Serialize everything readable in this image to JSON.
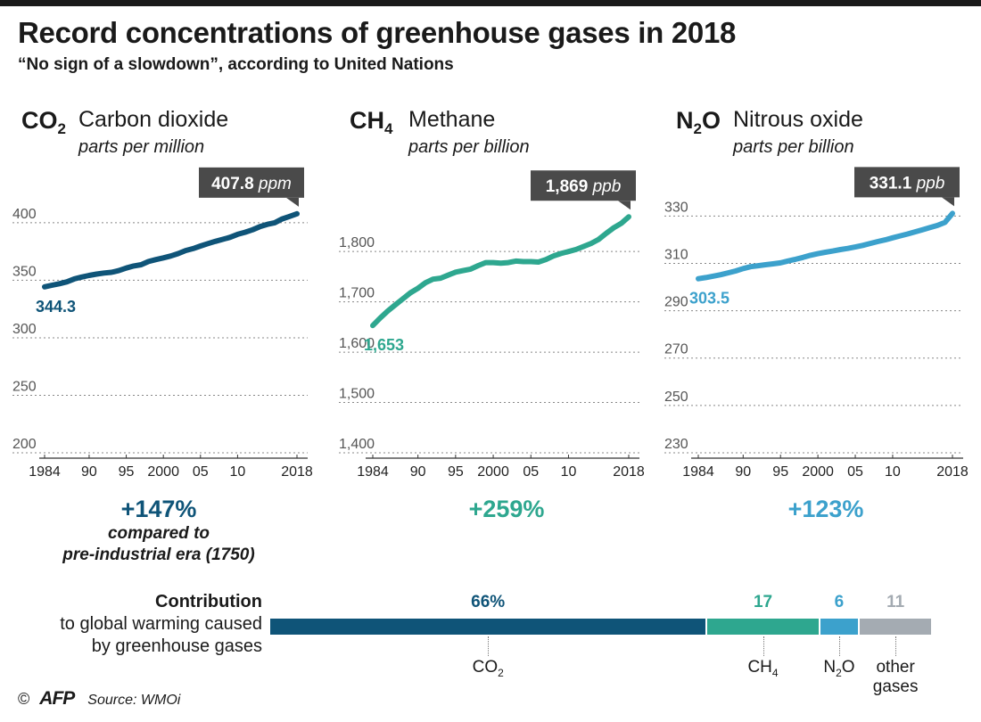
{
  "header": {
    "title": "Record concentrations of greenhouse gases in 2018",
    "subtitle": "“No sign of a slowdown”, according to United Nations"
  },
  "colors": {
    "co2": "#0f5478",
    "ch4": "#2ea78f",
    "n2o": "#3ca1cc",
    "other": "#a4abb2",
    "callout": "#4a4a4a",
    "grid": "#888888"
  },
  "chart_data": [
    {
      "type": "line",
      "formula_main": "CO",
      "formula_sub": "2",
      "name": "Carbon dioxide",
      "unit": "parts per million",
      "x_ticks": [
        "1984",
        "90",
        "95",
        "2000",
        "05",
        "10",
        "2018"
      ],
      "x_tick_values": [
        1984,
        1990,
        1995,
        2000,
        2005,
        2010,
        2018
      ],
      "y_ticks": [
        200,
        250,
        300,
        350,
        400
      ],
      "ylim": [
        200,
        410
      ],
      "xlim": [
        1984,
        2018
      ],
      "x": [
        1984,
        1985,
        1986,
        1987,
        1988,
        1989,
        1990,
        1991,
        1992,
        1993,
        1994,
        1995,
        1996,
        1997,
        1998,
        1999,
        2000,
        2001,
        2002,
        2003,
        2004,
        2005,
        2006,
        2007,
        2008,
        2009,
        2010,
        2011,
        2012,
        2013,
        2014,
        2015,
        2016,
        2017,
        2018
      ],
      "values": [
        344.3,
        345.7,
        347.0,
        348.6,
        351.2,
        352.8,
        354.2,
        355.4,
        356.3,
        356.9,
        358.4,
        360.6,
        362.4,
        363.5,
        366.3,
        368.0,
        369.5,
        371.1,
        373.2,
        375.8,
        377.5,
        379.8,
        381.9,
        383.8,
        385.6,
        387.4,
        389.9,
        391.7,
        393.9,
        396.6,
        398.6,
        400.0,
        403.3,
        405.5,
        407.8
      ],
      "start_label": "344.3",
      "end_value": "407.8",
      "end_unit": "ppm",
      "change": "+147%",
      "note_line1": "compared to",
      "note_line2": "pre-industrial era (1750)"
    },
    {
      "type": "line",
      "formula_main": "CH",
      "formula_sub": "4",
      "name": "Methane",
      "unit": "parts per billion",
      "x_ticks": [
        "1984",
        "90",
        "95",
        "2000",
        "05",
        "10",
        "2018"
      ],
      "x_tick_values": [
        1984,
        1990,
        1995,
        2000,
        2005,
        2010,
        2018
      ],
      "y_ticks": [
        "1,400",
        "1,500",
        "1,600",
        "1,700",
        "1,800"
      ],
      "y_tick_values": [
        1400,
        1500,
        1600,
        1700,
        1800
      ],
      "ylim": [
        1400,
        1880
      ],
      "xlim": [
        1984,
        2018
      ],
      "x": [
        1984,
        1985,
        1986,
        1987,
        1988,
        1989,
        1990,
        1991,
        1992,
        1993,
        1994,
        1995,
        1996,
        1997,
        1998,
        1999,
        2000,
        2001,
        2002,
        2003,
        2004,
        2005,
        2006,
        2007,
        2008,
        2009,
        2010,
        2011,
        2012,
        2013,
        2014,
        2015,
        2016,
        2017,
        2018
      ],
      "values": [
        1653,
        1668,
        1682,
        1694,
        1706,
        1718,
        1727,
        1738,
        1745,
        1747,
        1753,
        1759,
        1762,
        1765,
        1772,
        1778,
        1778,
        1777,
        1778,
        1781,
        1780,
        1780,
        1779,
        1784,
        1791,
        1796,
        1800,
        1804,
        1810,
        1816,
        1824,
        1836,
        1847,
        1856,
        1869
      ],
      "start_label": "1,653",
      "end_value": "1,869",
      "end_unit": "ppb",
      "change": "+259%"
    },
    {
      "type": "line",
      "formula_main": "N",
      "formula_sub": "2",
      "formula_tail": "O",
      "name": "Nitrous oxide",
      "unit": "parts per billion",
      "x_ticks": [
        "1984",
        "90",
        "95",
        "2000",
        "05",
        "10",
        "2018"
      ],
      "x_tick_values": [
        1984,
        1990,
        1995,
        2000,
        2005,
        2010,
        2018
      ],
      "y_ticks": [
        230,
        250,
        270,
        290,
        310,
        330
      ],
      "ylim": [
        230,
        332
      ],
      "xlim": [
        1984,
        2018
      ],
      "x": [
        1984,
        1985,
        1986,
        1987,
        1988,
        1989,
        1990,
        1991,
        1992,
        1993,
        1994,
        1995,
        1996,
        1997,
        1998,
        1999,
        2000,
        2001,
        2002,
        2003,
        2004,
        2005,
        2006,
        2007,
        2008,
        2009,
        2010,
        2011,
        2012,
        2013,
        2014,
        2015,
        2016,
        2017,
        2018
      ],
      "values": [
        303.5,
        304.0,
        304.6,
        305.2,
        306.0,
        306.8,
        307.8,
        308.6,
        309.0,
        309.4,
        309.8,
        310.2,
        311.0,
        311.7,
        312.5,
        313.4,
        314.1,
        314.7,
        315.2,
        315.8,
        316.3,
        316.9,
        317.6,
        318.4,
        319.2,
        319.9,
        320.8,
        321.6,
        322.4,
        323.3,
        324.2,
        325.1,
        326.0,
        327.3,
        331.1
      ],
      "start_label": "303.5",
      "end_value": "331.1",
      "end_unit": "ppb",
      "change": "+123%"
    }
  ],
  "contribution": {
    "heading": "Contribution",
    "sub_line1": "to global warming caused",
    "sub_line2": "by greenhouse gases",
    "segments": [
      {
        "key": "co2",
        "value": 66,
        "label": "66%",
        "name_main": "CO",
        "name_sub": "2"
      },
      {
        "key": "ch4",
        "value": 17,
        "label": "17",
        "name_main": "CH",
        "name_sub": "4"
      },
      {
        "key": "n2o",
        "value": 6,
        "label": "6",
        "name_main": "N",
        "name_sub": "2",
        "name_tail": "O"
      },
      {
        "key": "other",
        "value": 11,
        "label": "11",
        "name_line1": "other",
        "name_line2": "gases"
      }
    ]
  },
  "footer": {
    "copyright": "©",
    "logo": "AFP",
    "source": "Source: WMOi"
  }
}
